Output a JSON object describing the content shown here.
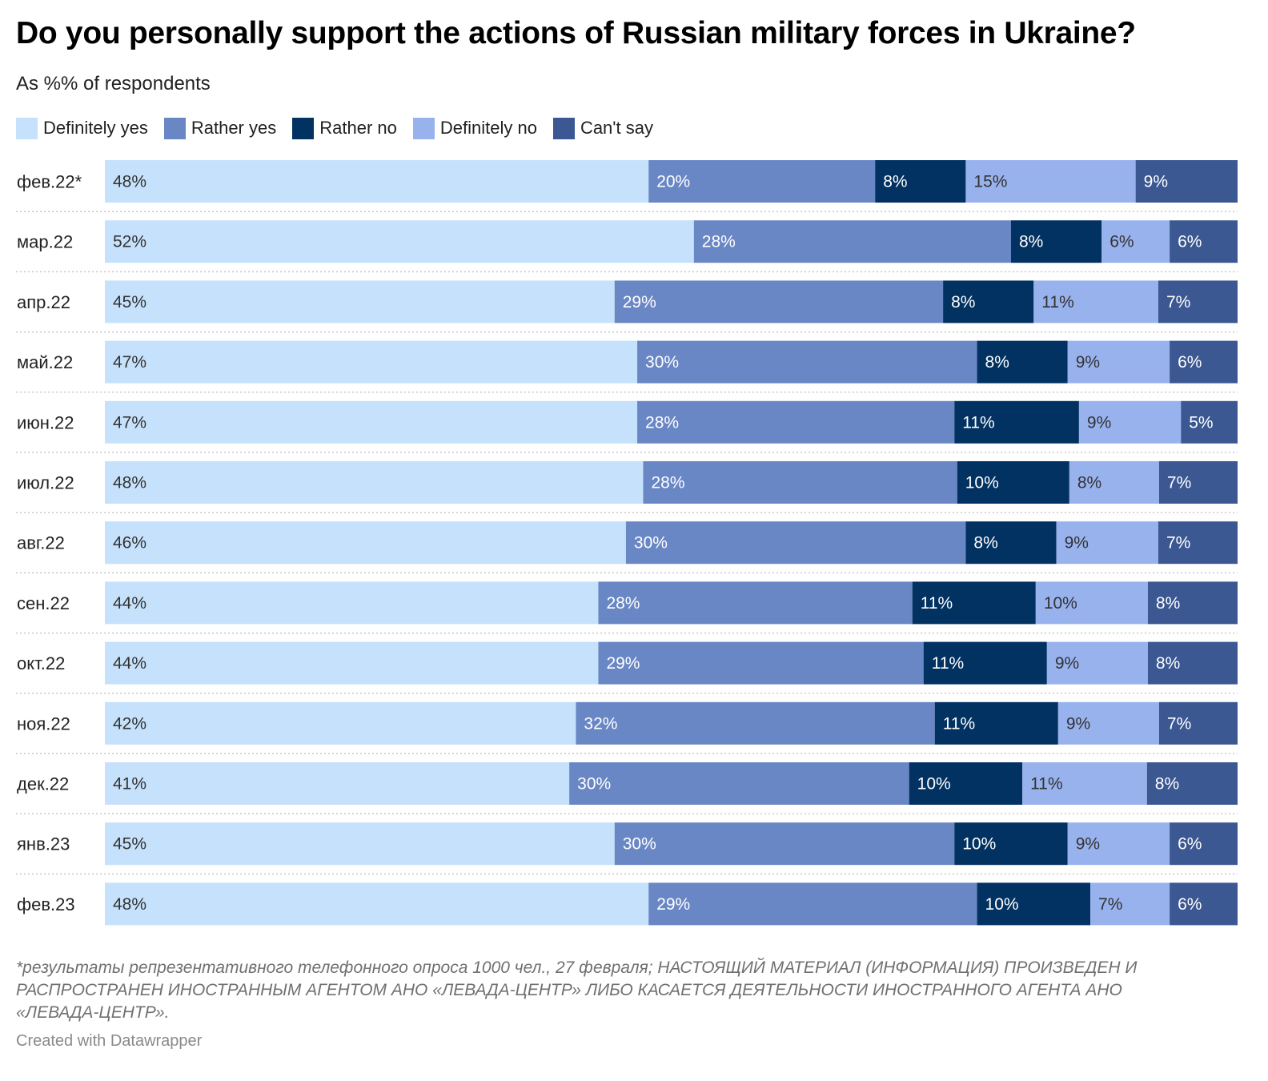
{
  "title": "Do you personally support the actions of Russian military forces in Ukraine?",
  "subtitle": "As %% of respondents",
  "footnote": "*результаты репрезентативного телефонного опроса 1000 чел., 27 февраля; НАСТОЯЩИЙ МАТЕРИАЛ (ИНФОРМАЦИЯ) ПРОИЗВЕДЕН И РАСПРОСТРАНЕН ИНОСТРАННЫМ АГЕНТОМ АНО «ЛЕВАДА-ЦЕНТР» ЛИБО КАСАЕТСЯ ДЕЯТЕЛЬНОСТИ ИНОСТРАННОГО АГЕНТА АНО «ЛЕВАДА-ЦЕНТР».",
  "credit": "Created with Datawrapper",
  "legend": [
    {
      "label": "Definitely yes",
      "color": "#c6e1fb"
    },
    {
      "label": "Rather yes",
      "color": "#6a87c5"
    },
    {
      "label": "Rather no",
      "color": "#023262"
    },
    {
      "label": "Definitely no",
      "color": "#98b2ee"
    },
    {
      "label": "Can't say",
      "color": "#3b5892"
    }
  ],
  "chart_data": {
    "type": "bar",
    "orientation": "horizontal",
    "stacked": true,
    "value_suffix": "%",
    "categories": [
      "фев.22*",
      "мар.22",
      "апр.22",
      "май.22",
      "июн.22",
      "июл.22",
      "авг.22",
      "сен.22",
      "окт.22",
      "ноя.22",
      "дек.22",
      "янв.23",
      "фев.23"
    ],
    "series": [
      {
        "name": "Definitely yes",
        "color": "#c6e1fb",
        "label_color": "#333333",
        "values": [
          48,
          52,
          45,
          47,
          47,
          48,
          46,
          44,
          44,
          42,
          41,
          45,
          48
        ]
      },
      {
        "name": "Rather yes",
        "color": "#6a87c5",
        "label_color": "#ffffff",
        "values": [
          20,
          28,
          29,
          30,
          28,
          28,
          30,
          28,
          29,
          32,
          30,
          30,
          29
        ]
      },
      {
        "name": "Rather no",
        "color": "#023262",
        "label_color": "#ffffff",
        "values": [
          8,
          8,
          8,
          8,
          11,
          10,
          8,
          11,
          11,
          11,
          10,
          10,
          10
        ]
      },
      {
        "name": "Definitely no",
        "color": "#98b2ee",
        "label_color": "#333333",
        "values": [
          15,
          6,
          11,
          9,
          9,
          8,
          9,
          10,
          9,
          9,
          11,
          9,
          7
        ]
      },
      {
        "name": "Can't say",
        "color": "#3b5892",
        "label_color": "#ffffff",
        "values": [
          9,
          6,
          7,
          6,
          5,
          7,
          7,
          8,
          8,
          7,
          8,
          6,
          6
        ]
      }
    ],
    "gridlines": "dotted row separators",
    "legend_position": "top-left"
  }
}
